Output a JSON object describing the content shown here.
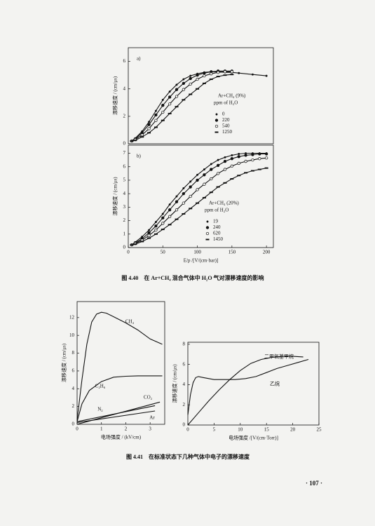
{
  "chart_data": [
    {
      "type": "line",
      "panel": "a)",
      "ylabel": "漂移速度 / (cm/μs)",
      "xlim": [
        0,
        210
      ],
      "ylim": [
        0,
        7
      ],
      "yticks": [
        0,
        2,
        4,
        6
      ],
      "legend": "box",
      "legend_title": [
        "Ar+CH₄ (9%)",
        "ppm of H₂O"
      ],
      "series": [
        {
          "name": "0",
          "marker": "dot",
          "x": [
            5,
            10,
            20,
            30,
            40,
            50,
            60,
            70,
            80,
            90,
            100,
            110,
            120,
            130,
            140,
            150,
            160,
            180,
            200
          ],
          "values": [
            0.2,
            0.4,
            0.9,
            1.6,
            2.4,
            3.2,
            3.8,
            4.3,
            4.7,
            4.95,
            5.1,
            5.2,
            5.25,
            5.25,
            5.2,
            5.2,
            5.15,
            5.05,
            4.95
          ]
        },
        {
          "name": "220",
          "marker": "filled",
          "x": [
            5,
            10,
            20,
            30,
            40,
            50,
            60,
            70,
            80,
            90,
            100,
            110,
            120,
            130,
            140,
            150
          ],
          "values": [
            0.2,
            0.35,
            0.8,
            1.4,
            2.1,
            2.8,
            3.4,
            3.95,
            4.4,
            4.75,
            5.0,
            5.15,
            5.25,
            5.3,
            5.3,
            5.3
          ]
        },
        {
          "name": "540",
          "marker": "open",
          "x": [
            5,
            10,
            20,
            30,
            40,
            50,
            60,
            70,
            80,
            90,
            100,
            110,
            120,
            130,
            140,
            150
          ],
          "values": [
            0.2,
            0.3,
            0.65,
            1.1,
            1.7,
            2.3,
            2.9,
            3.45,
            3.95,
            4.35,
            4.7,
            4.95,
            5.1,
            5.2,
            5.25,
            5.25
          ]
        },
        {
          "name": "1250",
          "marker": "bar",
          "x": [
            5,
            10,
            20,
            30,
            40,
            50,
            60,
            70,
            80,
            90,
            100,
            110,
            120,
            130,
            140,
            150
          ],
          "values": [
            0.2,
            0.25,
            0.5,
            0.8,
            1.2,
            1.7,
            2.2,
            2.7,
            3.2,
            3.6,
            4.0,
            4.4,
            4.7,
            4.9,
            5.0,
            5.05
          ]
        }
      ]
    },
    {
      "type": "line",
      "panel": "b)",
      "ylabel": "漂移速度 / (cm/μs)",
      "xlabel": "E/p /[V/(cm·bar)]",
      "xlim": [
        0,
        210
      ],
      "ylim": [
        0,
        7.6
      ],
      "xticks": [
        0,
        50,
        100,
        150,
        200
      ],
      "yticks": [
        0,
        1,
        2,
        3,
        4,
        5,
        6,
        7
      ],
      "legend": "box",
      "legend_title": [
        "Ar+CH₄ (20%)",
        "ppm of H₂O"
      ],
      "series": [
        {
          "name": "19",
          "marker": "dot",
          "x": [
            5,
            10,
            20,
            30,
            40,
            50,
            60,
            70,
            80,
            90,
            100,
            110,
            120,
            130,
            140,
            150,
            160,
            170,
            180,
            190,
            200
          ],
          "values": [
            0.2,
            0.4,
            0.8,
            1.3,
            1.9,
            2.5,
            3.2,
            3.8,
            4.4,
            4.9,
            5.4,
            5.8,
            6.2,
            6.5,
            6.7,
            6.85,
            6.95,
            7.0,
            7.0,
            7.0,
            7.0
          ]
        },
        {
          "name": "240",
          "marker": "filled",
          "x": [
            5,
            10,
            20,
            30,
            40,
            50,
            60,
            70,
            80,
            90,
            100,
            110,
            120,
            130,
            140,
            150,
            160,
            170,
            180,
            190,
            200
          ],
          "values": [
            0.2,
            0.35,
            0.65,
            1.1,
            1.6,
            2.2,
            2.8,
            3.4,
            4.0,
            4.5,
            5.0,
            5.4,
            5.8,
            6.1,
            6.4,
            6.6,
            6.75,
            6.85,
            6.9,
            6.95,
            6.95
          ]
        },
        {
          "name": "620",
          "marker": "open",
          "x": [
            5,
            10,
            20,
            30,
            40,
            50,
            60,
            70,
            80,
            90,
            100,
            110,
            120,
            130,
            140,
            150,
            160,
            170,
            180,
            190,
            200
          ],
          "values": [
            0.2,
            0.3,
            0.55,
            0.9,
            1.3,
            1.8,
            2.3,
            2.8,
            3.3,
            3.8,
            4.3,
            4.7,
            5.1,
            5.5,
            5.8,
            6.05,
            6.25,
            6.4,
            6.5,
            6.6,
            6.65
          ]
        },
        {
          "name": "1450",
          "marker": "bar",
          "x": [
            5,
            10,
            20,
            30,
            40,
            50,
            60,
            70,
            80,
            90,
            100,
            110,
            120,
            130,
            140,
            150,
            160,
            170,
            180,
            190,
            200
          ],
          "values": [
            0.2,
            0.25,
            0.45,
            0.7,
            1.0,
            1.35,
            1.7,
            2.1,
            2.5,
            2.9,
            3.3,
            3.7,
            4.1,
            4.5,
            4.8,
            5.1,
            5.35,
            5.55,
            5.7,
            5.8,
            5.9
          ]
        }
      ]
    },
    {
      "type": "line",
      "ylabel": "漂移速度 / (cm/μs)",
      "xlabel": "电场强度 / (kV/cm)",
      "xlim": [
        0,
        3.6
      ],
      "ylim": [
        0,
        13.8
      ],
      "xticks": [
        0,
        1,
        2,
        3
      ],
      "yticks": [
        0,
        2,
        4,
        6,
        8,
        10,
        12
      ],
      "legend": "inline",
      "series": [
        {
          "name": "CH₄",
          "x": [
            0,
            0.2,
            0.4,
            0.6,
            0.8,
            1.0,
            1.2,
            1.5,
            2.0,
            2.5,
            3.0,
            3.5
          ],
          "values": [
            0.5,
            5,
            9,
            11.5,
            12.4,
            12.6,
            12.5,
            12.1,
            11.4,
            10.6,
            9.6,
            9.0
          ]
        },
        {
          "name": "C₂H₆",
          "x": [
            0,
            0.2,
            0.5,
            1,
            1.5,
            2,
            2.5,
            3,
            3.5
          ],
          "values": [
            0.3,
            2.3,
            3.8,
            4.8,
            5.3,
            5.4,
            5.45,
            5.45,
            5.45
          ]
        },
        {
          "name": "CO₂",
          "x": [
            0,
            3.4
          ],
          "values": [
            0,
            2.5
          ]
        },
        {
          "name": "N₂",
          "x": [
            0,
            3.2
          ],
          "values": [
            0.3,
            2.1
          ]
        },
        {
          "name": "Ar",
          "x": [
            0,
            3.2
          ],
          "values": [
            0.2,
            1.5
          ]
        }
      ]
    },
    {
      "type": "line",
      "ylabel": "漂移速度 / (cm/μs)",
      "xlabel": "电场强度 /[V/(cm·Torr)]",
      "xlim": [
        0,
        25
      ],
      "ylim": [
        0,
        8.2
      ],
      "xticks": [
        0,
        5,
        10,
        15,
        20,
        25
      ],
      "yticks": [
        0,
        2,
        4,
        6,
        8
      ],
      "legend": "inline",
      "series": [
        {
          "name": "二甲氧基甲烷",
          "x": [
            0,
            2,
            4,
            6,
            8,
            10,
            12,
            14,
            16,
            18,
            20,
            22
          ],
          "values": [
            0,
            1.2,
            2.4,
            3.5,
            4.5,
            5.4,
            6.1,
            6.5,
            6.7,
            6.8,
            6.8,
            6.75
          ]
        },
        {
          "name": "乙烷",
          "x": [
            0,
            0.5,
            1,
            1.5,
            2,
            3,
            5,
            7,
            9,
            11,
            13,
            15,
            17,
            19,
            21,
            23
          ],
          "values": [
            1.0,
            3.0,
            4.2,
            4.7,
            4.8,
            4.7,
            4.5,
            4.5,
            4.5,
            4.6,
            4.8,
            5.2,
            5.6,
            5.9,
            6.2,
            6.5
          ]
        }
      ]
    }
  ],
  "captions": [
    "图 4.40　在 Ar+CH₄ 混合气体中 H₂O 气对漂移速度的影响",
    "图 4.41　在标准状态下几种气体中电子的漂移速度"
  ],
  "page_number": "· 107 ·"
}
